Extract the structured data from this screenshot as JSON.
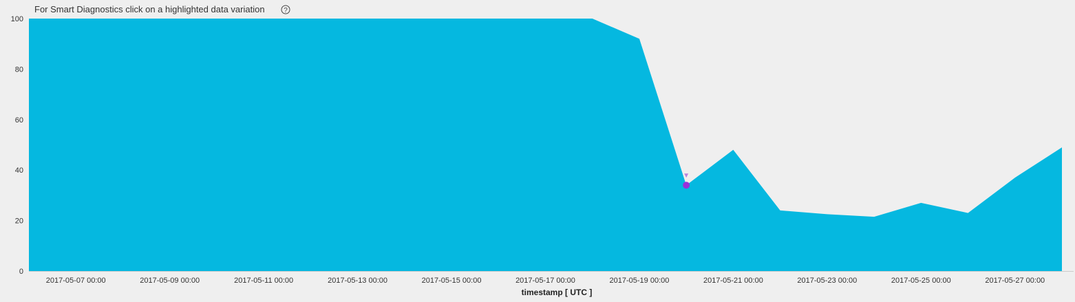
{
  "header": {
    "hint": "For Smart Diagnostics click on a highlighted data variation",
    "help_glyph": "?"
  },
  "colors": {
    "area": "#05b8e0",
    "anomaly": "#9b30d9",
    "background": "#efefef",
    "axis": "#cccccc"
  },
  "chart_data": {
    "type": "area",
    "xlabel": "timestamp [ UTC ]",
    "ylabel": "",
    "ylim": [
      0,
      100
    ],
    "yticks": [
      0,
      20,
      40,
      60,
      80,
      100
    ],
    "xlim": [
      "2017-05-06",
      "2017-05-28"
    ],
    "xticks": [
      {
        "date": "2017-05-07",
        "label": "2017-05-07 00:00"
      },
      {
        "date": "2017-05-09",
        "label": "2017-05-09 00:00"
      },
      {
        "date": "2017-05-11",
        "label": "2017-05-11 00:00"
      },
      {
        "date": "2017-05-13",
        "label": "2017-05-13 00:00"
      },
      {
        "date": "2017-05-15",
        "label": "2017-05-15 00:00"
      },
      {
        "date": "2017-05-17",
        "label": "2017-05-17 00:00"
      },
      {
        "date": "2017-05-19",
        "label": "2017-05-19 00:00"
      },
      {
        "date": "2017-05-21",
        "label": "2017-05-21 00:00"
      },
      {
        "date": "2017-05-23",
        "label": "2017-05-23 00:00"
      },
      {
        "date": "2017-05-25",
        "label": "2017-05-25 00:00"
      },
      {
        "date": "2017-05-27",
        "label": "2017-05-27 00:00"
      }
    ],
    "series": [
      {
        "x": [
          "2017-05-06",
          "2017-05-07",
          "2017-05-08",
          "2017-05-09",
          "2017-05-10",
          "2017-05-11",
          "2017-05-12",
          "2017-05-13",
          "2017-05-14",
          "2017-05-15",
          "2017-05-16",
          "2017-05-17",
          "2017-05-18",
          "2017-05-19",
          "2017-05-20",
          "2017-05-21",
          "2017-05-22",
          "2017-05-23",
          "2017-05-24",
          "2017-05-25",
          "2017-05-26",
          "2017-05-27",
          "2017-05-28"
        ],
        "y": [
          100,
          100,
          100,
          100,
          100,
          100,
          100,
          100,
          100,
          100,
          100,
          100,
          100,
          92,
          34,
          48,
          24,
          22.5,
          21.5,
          27,
          23,
          37,
          49
        ]
      }
    ],
    "anomalies": [
      {
        "x": "2017-05-20",
        "y": 34
      }
    ],
    "grid": false
  }
}
